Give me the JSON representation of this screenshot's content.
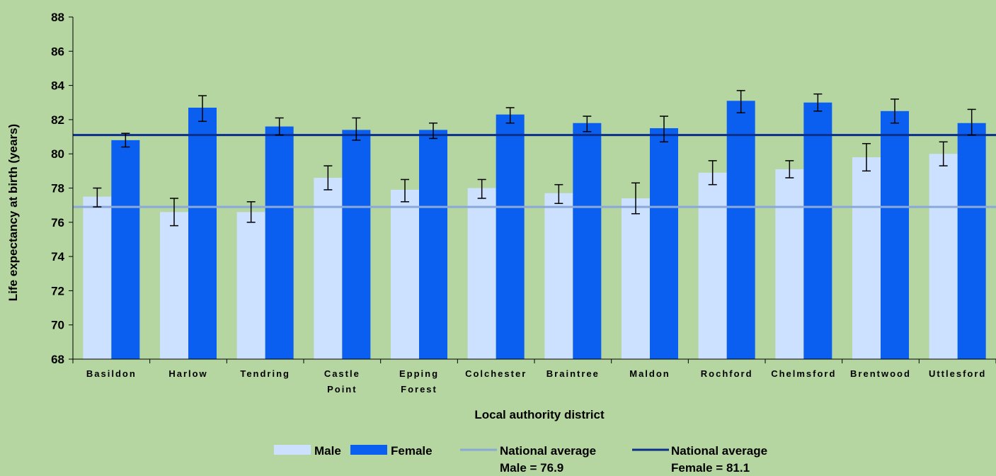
{
  "chart_data": {
    "type": "bar",
    "categories": [
      [
        "Basildon"
      ],
      [
        "Harlow"
      ],
      [
        "Tendring"
      ],
      [
        "Castle",
        "Point"
      ],
      [
        "Epping",
        "Forest"
      ],
      [
        "Colchester"
      ],
      [
        "Braintree"
      ],
      [
        "Maldon"
      ],
      [
        "Rochford"
      ],
      [
        "Chelmsford"
      ],
      [
        "Brentwood"
      ],
      [
        "Uttlesford"
      ]
    ],
    "series": [
      {
        "name": "Male",
        "color": "#cce0ff",
        "values": [
          77.5,
          76.6,
          76.6,
          78.6,
          77.9,
          78.0,
          77.7,
          77.4,
          78.9,
          79.1,
          79.8,
          80.0
        ],
        "ci_low": [
          76.9,
          75.8,
          76.0,
          77.9,
          77.2,
          77.4,
          77.1,
          76.5,
          78.2,
          78.6,
          79.0,
          79.3
        ],
        "ci_high": [
          78.0,
          77.4,
          77.2,
          79.3,
          78.5,
          78.5,
          78.2,
          78.3,
          79.6,
          79.6,
          80.6,
          80.7
        ]
      },
      {
        "name": "Female",
        "color": "#0a5ff0",
        "values": [
          80.8,
          82.7,
          81.6,
          81.4,
          81.4,
          82.3,
          81.8,
          81.5,
          83.1,
          83.0,
          82.5,
          81.8
        ],
        "ci_low": [
          80.4,
          81.9,
          81.1,
          80.8,
          80.9,
          81.8,
          81.3,
          80.7,
          82.4,
          82.5,
          81.8,
          81.1
        ],
        "ci_high": [
          81.2,
          83.4,
          82.1,
          82.1,
          81.8,
          82.7,
          82.2,
          82.2,
          83.7,
          83.5,
          83.2,
          82.6
        ]
      }
    ],
    "reference_lines": [
      {
        "name": "Male",
        "value": 76.9,
        "color": "#8aa8d8"
      },
      {
        "name": "Female",
        "value": 81.1,
        "color": "#0b2f8a"
      }
    ],
    "ylim": [
      68,
      88
    ],
    "yticks": [
      "68",
      "70",
      "72",
      "74",
      "76",
      "78",
      "80",
      "82",
      "84",
      "86",
      "88"
    ],
    "ylabel": "Life expectancy at birth (years)",
    "xlabel": "Local authority district",
    "legend": {
      "position": "bottom",
      "male_label": "Male",
      "female_label": "Female",
      "avg_label": "National average",
      "male_avg_label": "Male = 76.9",
      "female_avg_label": "Female = 81.1"
    }
  }
}
